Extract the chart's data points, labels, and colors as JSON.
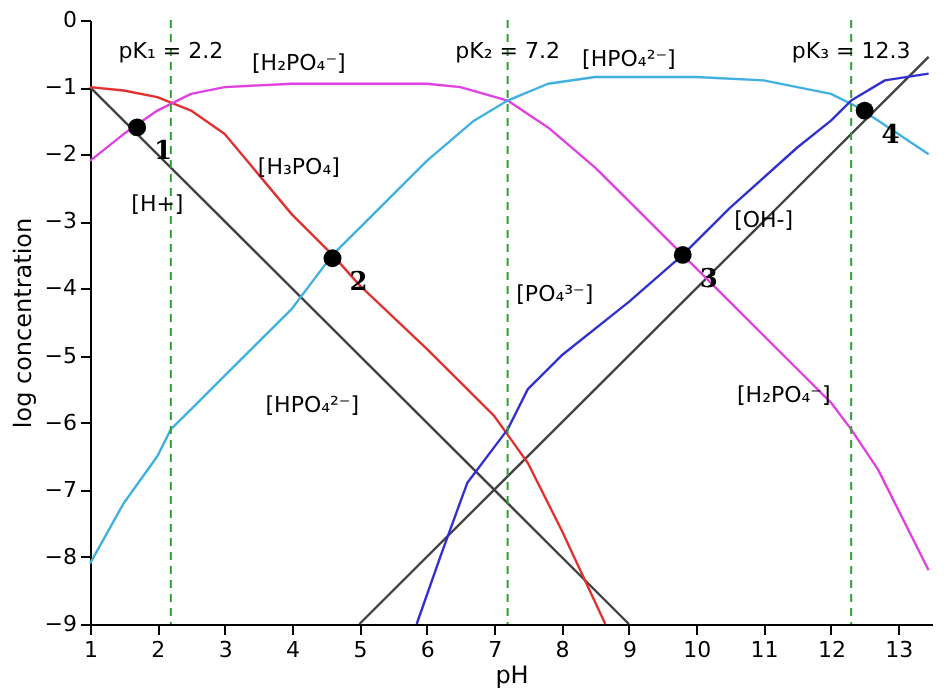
{
  "chart_data": {
    "type": "line",
    "xlabel": "pH",
    "ylabel": "log concentration",
    "xlim": [
      1,
      13.5
    ],
    "ylim": [
      -9,
      0
    ],
    "xticks": [
      1,
      2,
      3,
      4,
      5,
      6,
      7,
      8,
      9,
      10,
      11,
      12,
      13
    ],
    "yticks": [
      -9,
      -8,
      -7,
      -6,
      -5,
      -4,
      -3,
      -2,
      -1,
      0
    ],
    "grid": false,
    "marker": "none",
    "line_style": "solid",
    "series": [
      {
        "color": "#404040",
        "x": [
          1,
          9
        ],
        "values": [
          -1,
          -9
        ]
      },
      {
        "color": "#404040",
        "x": [
          5,
          13.45
        ],
        "values": [
          -9,
          -0.55
        ]
      },
      {
        "color": "#e03030",
        "x": [
          1,
          1.5,
          2,
          2.5,
          3,
          3.5,
          4,
          4.6,
          5,
          6,
          7,
          7.5,
          8,
          8.65
        ],
        "values": [
          -1,
          -1.05,
          -1.15,
          -1.35,
          -1.7,
          -2.3,
          -2.9,
          -3.5,
          -3.95,
          -4.9,
          -5.9,
          -6.6,
          -7.6,
          -9
        ]
      },
      {
        "color": "#e040e0",
        "x": [
          1,
          1.5,
          2,
          2.2,
          2.5,
          3,
          4,
          5,
          6,
          6.5,
          7.2,
          7.8,
          8.5,
          9,
          9.8,
          10.5,
          11.5,
          12,
          12.3,
          12.7,
          13.45
        ],
        "values": [
          -2.1,
          -1.7,
          -1.35,
          -1.25,
          -1.1,
          -1.0,
          -0.95,
          -0.95,
          -0.95,
          -1.0,
          -1.2,
          -1.6,
          -2.2,
          -2.7,
          -3.5,
          -4.2,
          -5.2,
          -5.7,
          -6.1,
          -6.7,
          -8.2
        ]
      },
      {
        "color": "#40b0e0",
        "x": [
          1,
          1.5,
          2,
          2.2,
          2.6,
          3,
          3.5,
          4,
          4.6,
          5,
          6,
          6.7,
          7.2,
          7.8,
          8.5,
          10,
          11,
          12,
          12.4,
          13,
          13.45
        ],
        "values": [
          -8.1,
          -7.2,
          -6.5,
          -6.1,
          -5.7,
          -5.3,
          -4.8,
          -4.3,
          -3.5,
          -3.1,
          -2.1,
          -1.5,
          -1.2,
          -0.95,
          -0.85,
          -0.85,
          -0.9,
          -1.1,
          -1.3,
          -1.7,
          -2.0
        ]
      },
      {
        "color": "#3030d0",
        "x": [
          5.85,
          6.2,
          6.6,
          7.2,
          7.5,
          8,
          9,
          9.8,
          10.5,
          11.5,
          12,
          12.3,
          12.8,
          13.45
        ],
        "values": [
          -9,
          -8,
          -6.9,
          -6.1,
          -5.5,
          -5.0,
          -4.2,
          -3.5,
          -2.8,
          -1.9,
          -1.5,
          -1.2,
          -0.9,
          -0.8
        ]
      },
      {
        "type": "scatter",
        "color": "#000000",
        "marker": "circle",
        "x": [
          1.7,
          4.6,
          9.8,
          12.5
        ],
        "values": [
          -1.6,
          -3.55,
          -3.5,
          -1.35
        ]
      }
    ],
    "ref_lines": [
      {
        "axis": "x",
        "value": 2.2,
        "label": "pK₁ = 2.2",
        "color": "#30a030",
        "line_style": "dashed"
      },
      {
        "axis": "x",
        "value": 7.2,
        "label": "pK₂ = 7.2",
        "color": "#30a030",
        "line_style": "dashed"
      },
      {
        "axis": "x",
        "value": 12.3,
        "label": "pK₃ = 12.3",
        "color": "#30a030",
        "line_style": "dashed"
      }
    ],
    "annotations": [
      "[H₂PO₄⁻]",
      "[H₃PO₄]",
      "[H+]",
      "[HPO₄²⁻]",
      "[HPO₄²⁻]",
      "[PO₄³⁻]",
      "[OH-]",
      "[H₂PO₄⁻]",
      {
        "text": "1",
        "x": 1.7,
        "y": -1.6
      },
      {
        "text": "2",
        "x": 4.6,
        "y": -3.55
      },
      {
        "text": "3",
        "x": 9.8,
        "y": -3.5
      },
      {
        "text": "4",
        "x": 12.5,
        "y": -1.35
      }
    ]
  }
}
